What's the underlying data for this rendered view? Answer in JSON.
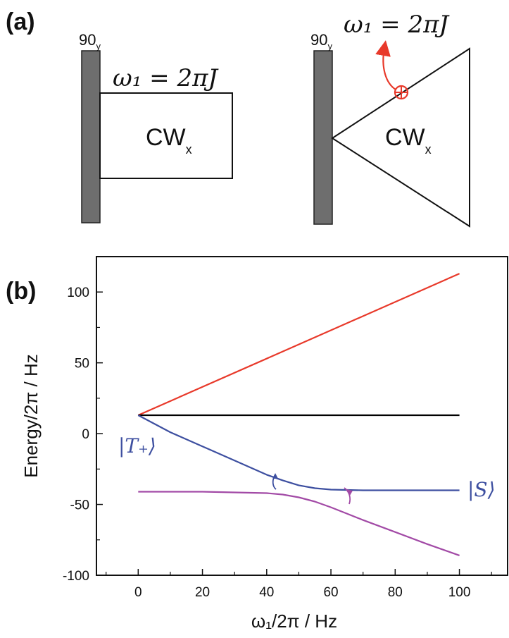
{
  "panel_a": {
    "label": "(a)",
    "left": {
      "pulse_label": "90",
      "pulse_sub": "y",
      "field_label": "ω₁ = 2πJ",
      "block_label": "CW",
      "block_sub": "x"
    },
    "right": {
      "pulse_label": "90",
      "pulse_sub": "y",
      "field_label": "ω₁ = 2πJ",
      "block_label": "CW",
      "block_sub": "x"
    }
  },
  "panel_b": {
    "label": "(b)",
    "annotation_tplus": "|T₊⟩",
    "annotation_s": "|S⟩"
  },
  "colors": {
    "red": "#e8392a",
    "black": "#000000",
    "blue": "#3d4fa0",
    "magenta": "#a24aa6",
    "pulse_fill": "#6e6e6e"
  },
  "chart_data": {
    "type": "line",
    "xlabel": "ω₁/2π / Hz",
    "ylabel": "Energy/2π / Hz",
    "xlim": [
      -13,
      115
    ],
    "ylim": [
      -100,
      125
    ],
    "xticks": [
      0,
      20,
      40,
      60,
      80,
      100
    ],
    "yticks": [
      100,
      50,
      0,
      -50,
      -100
    ],
    "grid": false,
    "series": [
      {
        "color": "red",
        "x": [
          0,
          100
        ],
        "y": [
          13,
          113
        ]
      },
      {
        "color": "black",
        "x": [
          0,
          100
        ],
        "y": [
          13,
          13
        ]
      },
      {
        "color": "blue",
        "x": [
          0,
          10,
          20,
          30,
          40,
          45,
          50,
          55,
          60,
          70,
          80,
          90,
          100
        ],
        "y": [
          13,
          1,
          -9,
          -19,
          -29,
          -33,
          -36.5,
          -38.5,
          -39.5,
          -40,
          -40,
          -40,
          -40
        ]
      },
      {
        "color": "magenta",
        "x": [
          0,
          10,
          20,
          30,
          40,
          45,
          50,
          55,
          60,
          65,
          70,
          80,
          90,
          100
        ],
        "y": [
          -41,
          -41,
          -41,
          -41.5,
          -42,
          -43,
          -45,
          -48,
          -52,
          -56.5,
          -61,
          -69.5,
          -78,
          -86
        ]
      }
    ]
  }
}
